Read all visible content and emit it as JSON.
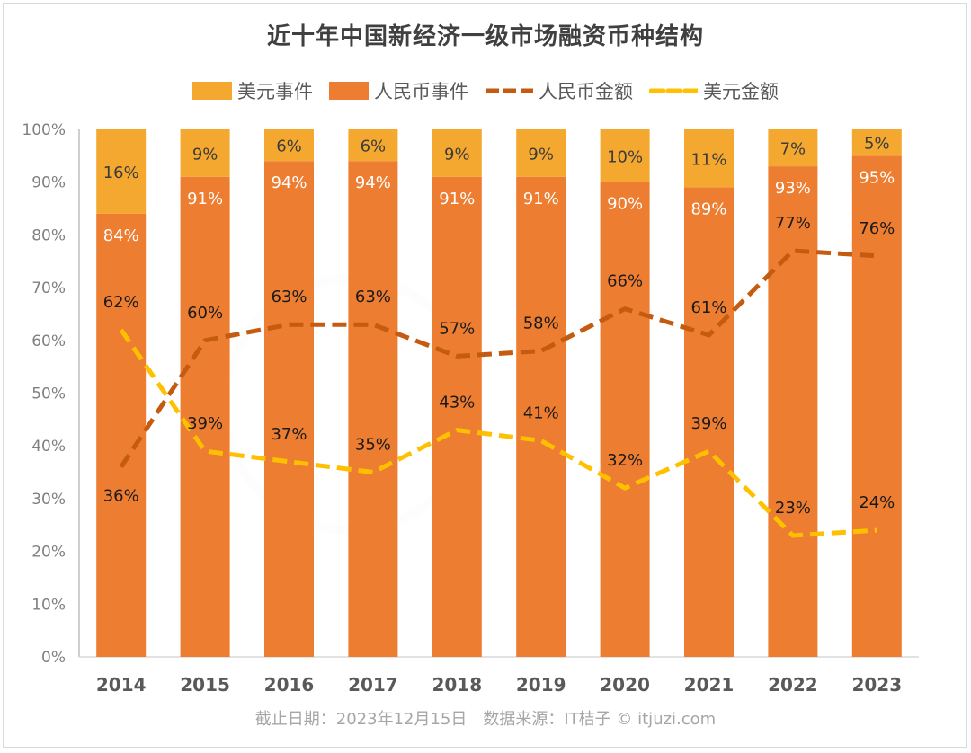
{
  "chart_data": {
    "type": "bar",
    "stacked": true,
    "title": "近十年中国新经济一级市场融资币种结构",
    "categories": [
      "2014",
      "2015",
      "2016",
      "2017",
      "2018",
      "2019",
      "2020",
      "2021",
      "2022",
      "2023"
    ],
    "xlabel": "",
    "ylabel": "",
    "ylim": [
      0,
      100
    ],
    "yticks": [
      "0%",
      "10%",
      "20%",
      "30%",
      "40%",
      "50%",
      "60%",
      "70%",
      "80%",
      "90%",
      "100%"
    ],
    "grid": false,
    "legend_position": "top-center",
    "series": [
      {
        "name": "人民币事件",
        "kind": "bar",
        "color": "#ED7D31",
        "label_color": "#ffffff",
        "values": [
          84,
          91,
          94,
          94,
          91,
          91,
          90,
          89,
          93,
          95
        ]
      },
      {
        "name": "美元事件",
        "kind": "bar",
        "color": "#F5A830",
        "label_color": "#3b3b3b",
        "values": [
          16,
          9,
          6,
          6,
          9,
          9,
          10,
          11,
          7,
          5
        ]
      },
      {
        "name": "人民币金额",
        "kind": "line",
        "style": "dashed",
        "color": "#C55A11",
        "label_color": "#1a1a1a",
        "values": [
          36,
          60,
          63,
          63,
          57,
          58,
          66,
          61,
          77,
          76
        ]
      },
      {
        "name": "美元金额",
        "kind": "line",
        "style": "dashed",
        "color": "#FFC000",
        "label_color": "#1a1a1a",
        "values": [
          62,
          39,
          37,
          35,
          43,
          41,
          32,
          39,
          23,
          24
        ]
      }
    ],
    "legend": [
      "美元事件",
      "人民币事件",
      "人民币金额",
      "美元金额"
    ]
  },
  "legend": {
    "usd_events": "美元事件",
    "rmb_events": "人民币事件",
    "rmb_amount": "人民币金额",
    "usd_amount": "美元金额"
  },
  "footer": "截止日期：2023年12月15日　数据来源：IT桔子 © itjuzi.com"
}
